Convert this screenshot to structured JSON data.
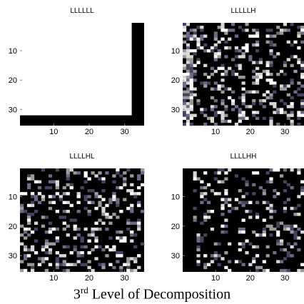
{
  "chart_data": [
    {
      "type": "image",
      "title": "LLLLLL",
      "xlim": [
        0.5,
        35.5
      ],
      "ylim": [
        0.5,
        35.5
      ],
      "xticks": [
        10,
        20,
        30
      ],
      "yticks": [
        10,
        20,
        30
      ]
    },
    {
      "type": "image",
      "title": "LLLLLH",
      "xlim": [
        0.5,
        35.5
      ],
      "ylim": [
        0.5,
        35.5
      ],
      "xticks": [
        10,
        20,
        30
      ],
      "yticks": [
        10,
        20,
        30
      ]
    },
    {
      "type": "image",
      "title": "LLLLHL",
      "xlim": [
        0.5,
        35.5
      ],
      "ylim": [
        0.5,
        35.5
      ],
      "xticks": [
        10,
        20,
        30
      ],
      "yticks": [
        10,
        20,
        30
      ]
    },
    {
      "type": "image",
      "title": "LLLLHH",
      "xlim": [
        0.5,
        35.5
      ],
      "ylim": [
        0.5,
        35.5
      ],
      "xticks": [
        10,
        20,
        30
      ],
      "yticks": [
        10,
        20,
        30
      ]
    }
  ],
  "caption": {
    "number": "3",
    "superscript": "rd",
    "text": "Level of Decomposition"
  }
}
